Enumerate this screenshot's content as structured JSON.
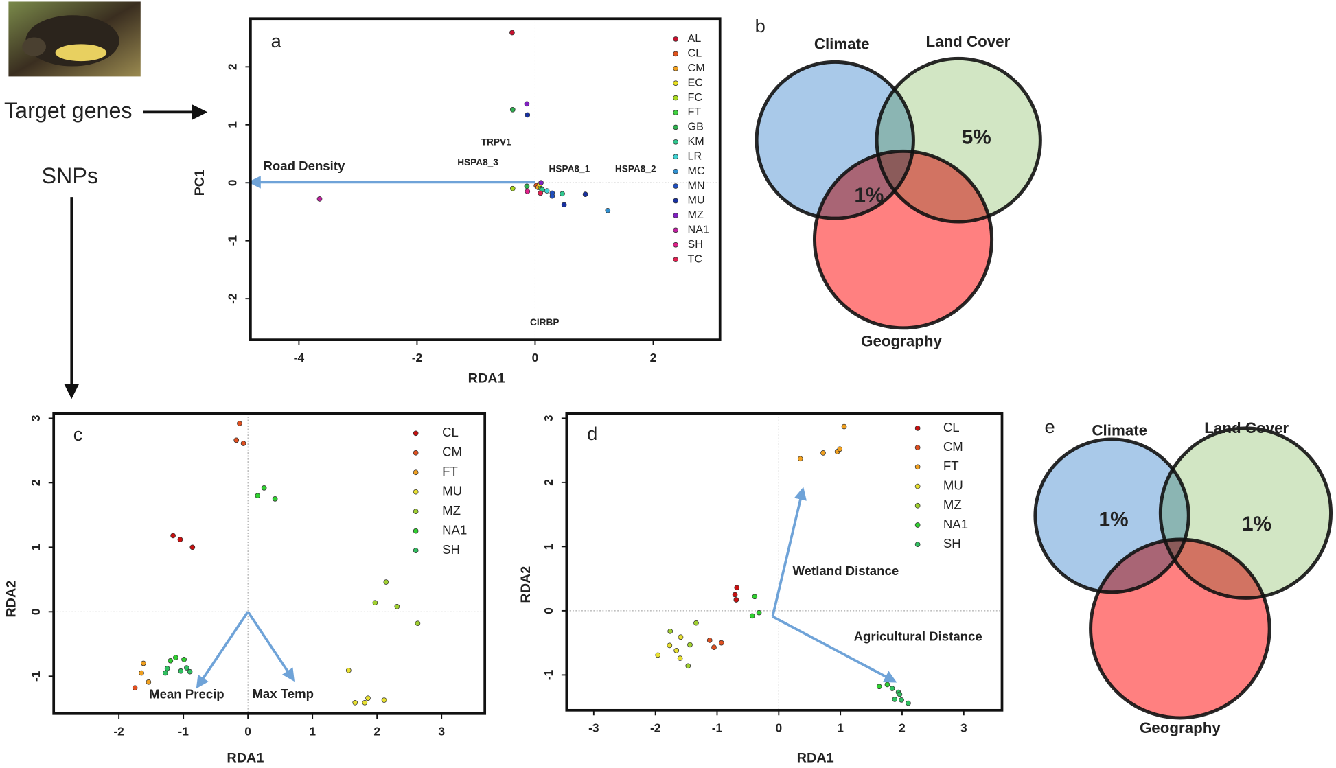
{
  "labels": {
    "target": "Target genes",
    "snps": "SNPs"
  },
  "chart_data": [
    {
      "type": "scatter",
      "panel_label": "a",
      "x_label": "RDA1",
      "y_label": "PC1",
      "xlim": [
        -4.82,
        3.13
      ],
      "ylim": [
        -2.71,
        2.83
      ],
      "xticks": [
        -4,
        -2,
        0,
        2
      ],
      "yticks": [
        -2,
        -1,
        0,
        1,
        2
      ],
      "series": [
        {
          "name": "AL",
          "color": "#c8102e",
          "x": [
            -0.39
          ],
          "values": [
            2.59
          ]
        },
        {
          "name": "CL",
          "color": "#e0531c",
          "x": [
            0.02
          ],
          "values": [
            -0.05
          ]
        },
        {
          "name": "CM",
          "color": "#f0a020",
          "x": [
            0.05
          ],
          "values": [
            -0.08
          ]
        },
        {
          "name": "EC",
          "color": "#e8e020",
          "x": [
            0.08
          ],
          "values": [
            -0.03
          ]
        },
        {
          "name": "FC",
          "color": "#a8d820",
          "x": [
            -0.38
          ],
          "values": [
            -0.1
          ]
        },
        {
          "name": "FT",
          "color": "#40d040",
          "x": [
            0.1
          ],
          "values": [
            -0.1
          ]
        },
        {
          "name": "GB",
          "color": "#30b050",
          "x": [
            -0.38,
            -0.14
          ],
          "values": [
            1.26,
            -0.06
          ]
        },
        {
          "name": "KM",
          "color": "#30c890",
          "x": [
            0.46,
            0.12
          ],
          "values": [
            -0.19,
            -0.12
          ]
        },
        {
          "name": "LR",
          "color": "#40d0d0",
          "x": [
            0.2
          ],
          "values": [
            -0.14
          ]
        },
        {
          "name": "MC",
          "color": "#3090d0",
          "x": [
            1.23
          ],
          "values": [
            -0.48
          ]
        },
        {
          "name": "MN",
          "color": "#2050c0",
          "x": [
            0.29,
            0.29
          ],
          "values": [
            -0.18,
            -0.23
          ]
        },
        {
          "name": "MU",
          "color": "#1830a0",
          "x": [
            -0.13,
            0.85,
            0.49
          ],
          "values": [
            1.17,
            -0.2,
            -0.38
          ]
        },
        {
          "name": "MZ",
          "color": "#8020c0",
          "x": [
            -0.14,
            0.1
          ],
          "values": [
            1.36,
            0
          ]
        },
        {
          "name": "NA1",
          "color": "#c020a0",
          "x": [
            -3.65
          ],
          "values": [
            -0.28
          ]
        },
        {
          "name": "SH",
          "color": "#e0208a",
          "x": [
            -0.13
          ],
          "values": [
            -0.15
          ]
        },
        {
          "name": "TC",
          "color": "#e02050",
          "x": [
            0.09
          ],
          "values": [
            -0.18
          ]
        }
      ],
      "arrows": [
        {
          "label": "Road Density",
          "x0": 0,
          "y0": 0.01,
          "x": -4.82,
          "y": 0.01
        }
      ],
      "gene_labels": [
        {
          "label": "TRPV1",
          "x": -0.66,
          "y": 0.69
        },
        {
          "label": "HSPA8_3",
          "x": -0.97,
          "y": 0.34
        },
        {
          "label": "HSPA8_1",
          "x": 0.58,
          "y": 0.23
        },
        {
          "label": "HSPA8_2",
          "x": 1.7,
          "y": 0.23
        },
        {
          "label": "CIRBP",
          "x": 0.16,
          "y": -2.42
        }
      ]
    },
    {
      "type": "venn",
      "panel_label": "b",
      "sets": [
        "Climate",
        "Land Cover",
        "Geography"
      ],
      "values": [
        5,
        1
      ],
      "value_labels": [
        "5%",
        "1%"
      ]
    },
    {
      "type": "scatter",
      "panel_label": "c",
      "x_label": "RDA1",
      "y_label": "RDA2",
      "xlim": [
        -3.01,
        3.67
      ],
      "ylim": [
        -1.58,
        3.07
      ],
      "xticks": [
        -2,
        -1,
        0,
        1,
        2,
        3
      ],
      "yticks": [
        -1,
        0,
        1,
        2,
        3
      ],
      "series": [
        {
          "name": "CL",
          "color": "#c81010",
          "x": [
            -1.16,
            -1.05,
            -0.86
          ],
          "values": [
            1.18,
            1.12,
            1.0
          ]
        },
        {
          "name": "CM",
          "color": "#e05020",
          "x": [
            -0.13,
            -0.18,
            -0.07,
            -1.75
          ],
          "values": [
            2.92,
            2.66,
            2.61,
            -1.18
          ]
        },
        {
          "name": "FT",
          "color": "#f0a020",
          "x": [
            -1.62,
            -1.54,
            -1.65
          ],
          "values": [
            -0.8,
            -1.09,
            -0.95
          ]
        },
        {
          "name": "MU",
          "color": "#e8e030",
          "x": [
            1.56,
            1.66,
            1.81,
            1.86,
            2.11
          ],
          "values": [
            -0.91,
            -1.41,
            -1.41,
            -1.34,
            -1.37
          ]
        },
        {
          "name": "MZ",
          "color": "#a0d030",
          "x": [
            2.14,
            1.97,
            2.31,
            2.63
          ],
          "values": [
            0.46,
            0.14,
            0.08,
            -0.18
          ]
        },
        {
          "name": "NA1",
          "color": "#30d030",
          "x": [
            0.15,
            0.25,
            0.42,
            -1.2,
            -1.12,
            -0.99
          ],
          "values": [
            1.8,
            1.92,
            1.75,
            -0.76,
            -0.71,
            -0.74
          ]
        },
        {
          "name": "SH",
          "color": "#30c060",
          "x": [
            -1.28,
            -0.95,
            -1.04,
            -0.9,
            -1.25
          ],
          "values": [
            -0.95,
            -0.87,
            -0.92,
            -0.93,
            -0.88
          ]
        }
      ],
      "arrows": [
        {
          "label": "Mean Precip",
          "x0": 0,
          "y0": 0,
          "x": -0.78,
          "y": -1.16
        },
        {
          "label": "Max Temp",
          "x0": 0,
          "y0": 0,
          "x": 0.7,
          "y": -1.05
        }
      ]
    },
    {
      "type": "scatter",
      "panel_label": "d",
      "x_label": "RDA1",
      "y_label": "RDA2",
      "xlim": [
        -3.44,
        3.62
      ],
      "ylim": [
        -1.55,
        3.07
      ],
      "xticks": [
        -3,
        -2,
        -1,
        0,
        1,
        2,
        3
      ],
      "yticks": [
        -1,
        0,
        1,
        2,
        3
      ],
      "series": [
        {
          "name": "CL",
          "color": "#c81010",
          "x": [
            -0.68,
            -0.71,
            -0.69
          ],
          "values": [
            0.36,
            0.25,
            0.17
          ]
        },
        {
          "name": "CM",
          "color": "#e05020",
          "x": [
            -1.12,
            -1.05,
            -0.93
          ],
          "values": [
            -0.46,
            -0.57,
            -0.5
          ]
        },
        {
          "name": "FT",
          "color": "#f0a020",
          "x": [
            0.35,
            0.72,
            0.95,
            0.99,
            1.06
          ],
          "values": [
            2.37,
            2.46,
            2.48,
            2.52,
            2.87
          ]
        },
        {
          "name": "MU",
          "color": "#e8e030",
          "x": [
            -1.59,
            -1.77,
            -1.66,
            -1.6,
            -1.96
          ],
          "values": [
            -0.41,
            -0.54,
            -0.62,
            -0.74,
            -0.69
          ]
        },
        {
          "name": "MZ",
          "color": "#a0d030",
          "x": [
            -1.34,
            -1.76,
            -1.44,
            -1.47
          ],
          "values": [
            -0.19,
            -0.32,
            -0.53,
            -0.86
          ]
        },
        {
          "name": "NA1",
          "color": "#30d030",
          "x": [
            -0.39,
            -0.43,
            -0.32,
            1.63,
            1.76
          ],
          "values": [
            0.22,
            -0.08,
            -0.03,
            -1.18,
            -1.15
          ]
        },
        {
          "name": "SH",
          "color": "#30c060",
          "x": [
            1.84,
            1.94,
            1.88,
            1.99,
            2.1,
            1.96
          ],
          "values": [
            -1.21,
            -1.27,
            -1.38,
            -1.39,
            -1.44,
            -1.3
          ]
        }
      ],
      "arrows": [
        {
          "label": "Wetland Distance",
          "x0": -0.1,
          "y0": -0.09,
          "x": 0.39,
          "y": 1.89
        },
        {
          "label": "Agricultural Distance",
          "x0": -0.1,
          "y0": -0.09,
          "x": 1.88,
          "y": -1.1
        }
      ]
    },
    {
      "type": "venn",
      "panel_label": "e",
      "sets": [
        "Climate",
        "Land Cover",
        "Geography"
      ],
      "values": [
        1,
        1
      ],
      "value_labels": [
        "1%",
        "1%"
      ]
    }
  ]
}
